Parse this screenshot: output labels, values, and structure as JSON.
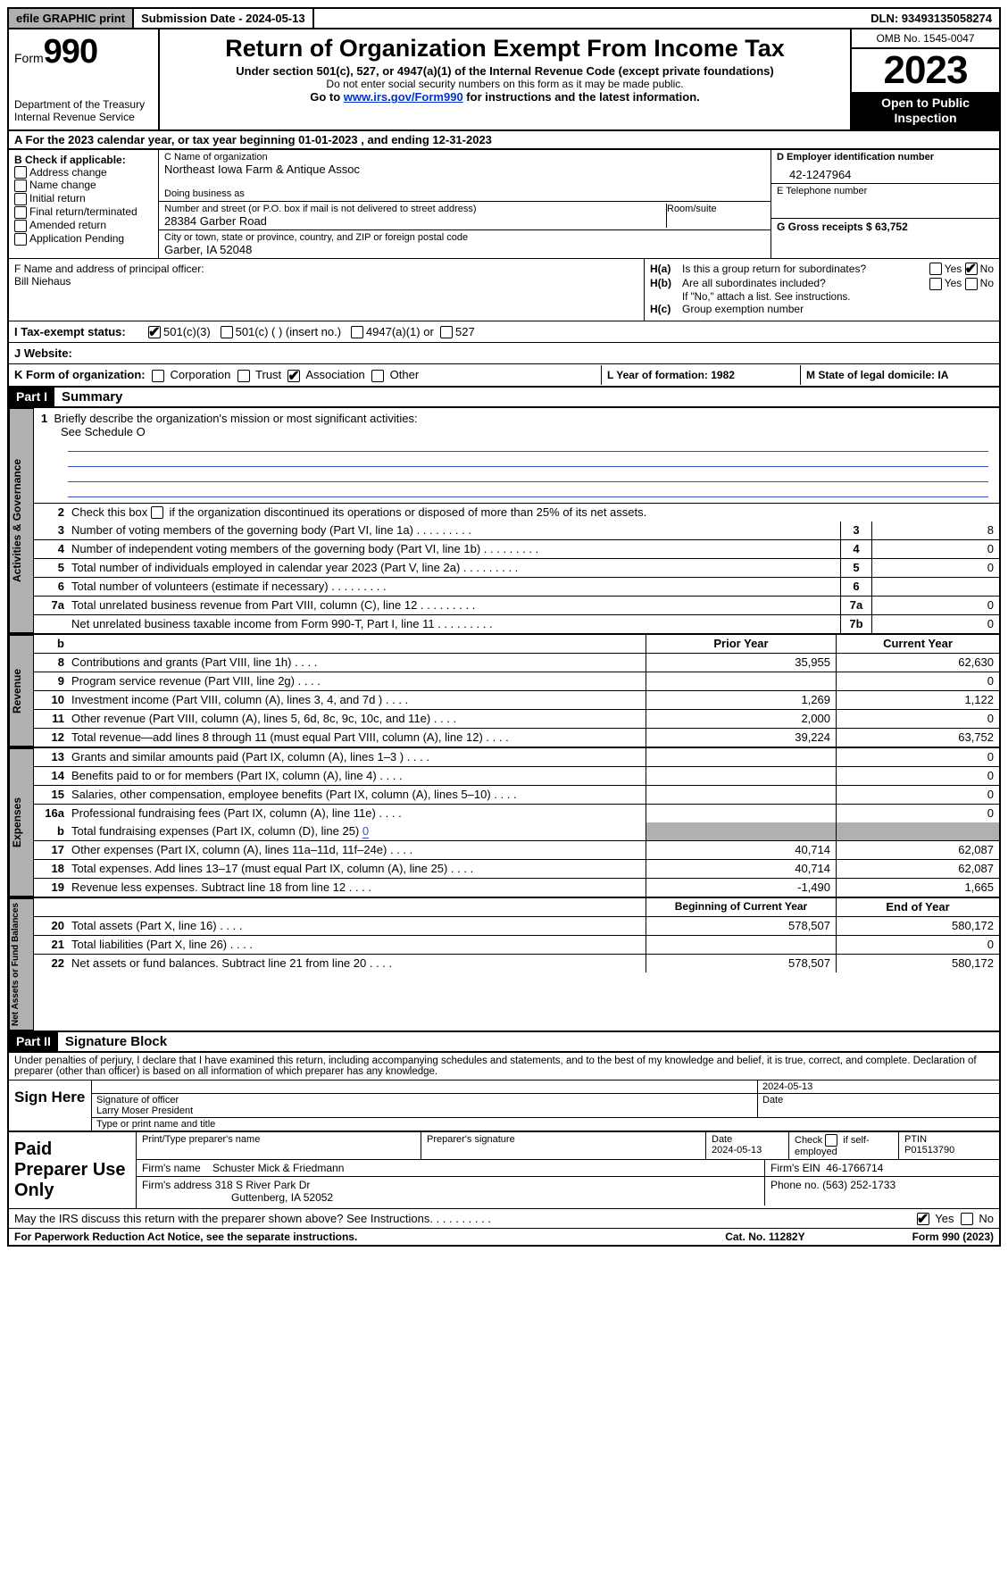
{
  "topbar": {
    "efile": "efile GRAPHIC print",
    "submission": "Submission Date - 2024-05-13",
    "dln": "DLN: 93493135058274"
  },
  "header": {
    "form_label": "Form",
    "form_no": "990",
    "dept": "Department of the Treasury",
    "irs": "Internal Revenue Service",
    "title": "Return of Organization Exempt From Income Tax",
    "sub1": "Under section 501(c), 527, or 4947(a)(1) of the Internal Revenue Code (except private foundations)",
    "sub2": "Do not enter social security numbers on this form as it may be made public.",
    "sub3_pre": "Go to ",
    "sub3_link": "www.irs.gov/Form990",
    "sub3_post": " for instructions and the latest information.",
    "omb": "OMB No. 1545-0047",
    "year": "2023",
    "open": "Open to Public Inspection"
  },
  "rowA": "A For the 2023 calendar year, or tax year beginning 01-01-2023    , and ending 12-31-2023",
  "colB": {
    "hdr": "B Check if applicable:",
    "items": [
      "Address change",
      "Name change",
      "Initial return",
      "Final return/terminated",
      "Amended return",
      "Application Pending"
    ]
  },
  "colC": {
    "name_lbl": "C Name of organization",
    "name": "Northeast Iowa Farm & Antique Assoc",
    "dba_lbl": "Doing business as",
    "addr_lbl": "Number and street (or P.O. box if mail is not delivered to street address)",
    "addr": "28384 Garber Road",
    "room_lbl": "Room/suite",
    "city_lbl": "City or town, state or province, country, and ZIP or foreign postal code",
    "city": "Garber, IA   52048"
  },
  "colD": {
    "ein_lbl": "D Employer identification number",
    "ein": "42-1247964",
    "tel_lbl": "E Telephone number",
    "gross_lbl": "G Gross receipts $ 63,752"
  },
  "officer": {
    "lbl": "F  Name and address of principal officer:",
    "name": "Bill Niehaus"
  },
  "ha": {
    "a_lbl": "H(a)",
    "a_txt": "Is this a group return for subordinates?",
    "b_lbl": "H(b)",
    "b_txt": "Are all subordinates included?",
    "b_note": "If \"No,\" attach a list. See instructions.",
    "c_lbl": "H(c)",
    "c_txt": "Group exemption number",
    "yes": "Yes",
    "no": "No"
  },
  "status": {
    "lbl": "I   Tax-exempt status:",
    "o1": "501(c)(3)",
    "o2": "501(c) (  ) (insert no.)",
    "o3": "4947(a)(1) or",
    "o4": "527"
  },
  "website_lbl": "J   Website:",
  "k": {
    "lbl": "K Form of organization:",
    "opts": [
      "Corporation",
      "Trust",
      "Association",
      "Other"
    ],
    "l": "L Year of formation: 1982",
    "m": "M State of legal domicile: IA"
  },
  "part1": {
    "hdr": "Part I",
    "title": "Summary"
  },
  "briefly": {
    "num": "1",
    "txt": "Briefly describe the organization's mission or most significant activities:",
    "val": "See Schedule O"
  },
  "line2": {
    "num": "2",
    "txt": "Check this box      if the organization discontinued its operations or disposed of more than 25% of its net assets."
  },
  "gov_lines": [
    {
      "n": "3",
      "d": "Number of voting members of the governing body (Part VI, line 1a)",
      "box": "3",
      "v": "8"
    },
    {
      "n": "4",
      "d": "Number of independent voting members of the governing body (Part VI, line 1b)",
      "box": "4",
      "v": "0"
    },
    {
      "n": "5",
      "d": "Total number of individuals employed in calendar year 2023 (Part V, line 2a)",
      "box": "5",
      "v": "0"
    },
    {
      "n": "6",
      "d": "Total number of volunteers (estimate if necessary)",
      "box": "6",
      "v": ""
    },
    {
      "n": "7a",
      "d": "Total unrelated business revenue from Part VIII, column (C), line 12",
      "box": "7a",
      "v": "0"
    },
    {
      "n": "",
      "d": "Net unrelated business taxable income from Form 990-T, Part I, line 11",
      "box": "7b",
      "v": "0"
    }
  ],
  "rev_hdr": {
    "b": "b",
    "prior": "Prior Year",
    "current": "Current Year"
  },
  "rev_lines": [
    {
      "n": "8",
      "d": "Contributions and grants (Part VIII, line 1h)",
      "p": "35,955",
      "c": "62,630"
    },
    {
      "n": "9",
      "d": "Program service revenue (Part VIII, line 2g)",
      "p": "",
      "c": "0"
    },
    {
      "n": "10",
      "d": "Investment income (Part VIII, column (A), lines 3, 4, and 7d )",
      "p": "1,269",
      "c": "1,122"
    },
    {
      "n": "11",
      "d": "Other revenue (Part VIII, column (A), lines 5, 6d, 8c, 9c, 10c, and 11e)",
      "p": "2,000",
      "c": "0"
    },
    {
      "n": "12",
      "d": "Total revenue—add lines 8 through 11 (must equal Part VIII, column (A), line 12)",
      "p": "39,224",
      "c": "63,752"
    }
  ],
  "exp_lines": [
    {
      "n": "13",
      "d": "Grants and similar amounts paid (Part IX, column (A), lines 1–3 )",
      "p": "",
      "c": "0"
    },
    {
      "n": "14",
      "d": "Benefits paid to or for members (Part IX, column (A), line 4)",
      "p": "",
      "c": "0"
    },
    {
      "n": "15",
      "d": "Salaries, other compensation, employee benefits (Part IX, column (A), lines 5–10)",
      "p": "",
      "c": "0"
    },
    {
      "n": "16a",
      "d": "Professional fundraising fees (Part IX, column (A), line 11e)",
      "p": "",
      "c": "0"
    }
  ],
  "exp_b": {
    "n": "b",
    "d": "Total fundraising expenses (Part IX, column (D), line 25)",
    "v": "0"
  },
  "exp_lines2": [
    {
      "n": "17",
      "d": "Other expenses (Part IX, column (A), lines 11a–11d, 11f–24e)",
      "p": "40,714",
      "c": "62,087"
    },
    {
      "n": "18",
      "d": "Total expenses. Add lines 13–17 (must equal Part IX, column (A), line 25)",
      "p": "40,714",
      "c": "62,087"
    },
    {
      "n": "19",
      "d": "Revenue less expenses. Subtract line 18 from line 12",
      "p": "-1,490",
      "c": "1,665"
    }
  ],
  "na_hdr": {
    "prior": "Beginning of Current Year",
    "current": "End of Year"
  },
  "na_lines": [
    {
      "n": "20",
      "d": "Total assets (Part X, line 16)",
      "p": "578,507",
      "c": "580,172"
    },
    {
      "n": "21",
      "d": "Total liabilities (Part X, line 26)",
      "p": "",
      "c": "0"
    },
    {
      "n": "22",
      "d": "Net assets or fund balances. Subtract line 21 from line 20",
      "p": "578,507",
      "c": "580,172"
    }
  ],
  "part2": {
    "hdr": "Part II",
    "title": "Signature Block"
  },
  "penalty": "Under penalties of perjury, I declare that I have examined this return, including accompanying schedules and statements, and to the best of my knowledge and belief, it is true, correct, and complete. Declaration of preparer (other than officer) is based on all information of which preparer has any knowledge.",
  "sign": {
    "lbl": "Sign Here",
    "date": "2024-05-13",
    "sig_lbl": "Signature of officer",
    "name": "Larry Moser  President",
    "type_lbl": "Type or print name and title",
    "date_lbl": "Date"
  },
  "prep": {
    "lbl": "Paid Preparer Use Only",
    "h1": "Print/Type preparer's name",
    "h2": "Preparer's signature",
    "h3_lbl": "Date",
    "h3": "2024-05-13",
    "h4_lbl": "Check        if self-employed",
    "h5_lbl": "PTIN",
    "h5": "P01513790",
    "firm_lbl": "Firm's name",
    "firm": "Schuster Mick & Friedmann",
    "ein_lbl": "Firm's EIN",
    "ein": "46-1766714",
    "addr_lbl": "Firm's address",
    "addr1": "318 S River Park Dr",
    "addr2": "Guttenberg, IA   52052",
    "phone_lbl": "Phone no.",
    "phone": "(563) 252-1733"
  },
  "discuss": {
    "txt": "May the IRS discuss this return with the preparer shown above? See Instructions.",
    "yes": "Yes",
    "no": "No"
  },
  "footer": {
    "left": "For Paperwork Reduction Act Notice, see the separate instructions.",
    "mid": "Cat. No. 11282Y",
    "right_pre": "Form ",
    "right_form": "990",
    "right_post": " (2023)"
  }
}
